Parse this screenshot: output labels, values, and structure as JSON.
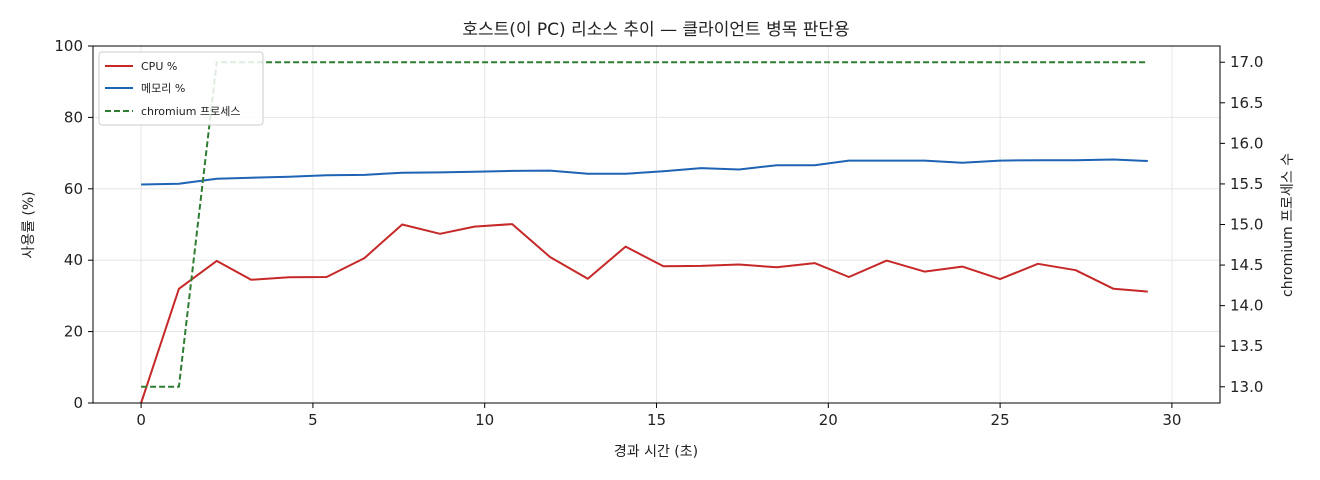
{
  "chart_data": {
    "type": "line",
    "title": "호스트(이 PC) 리소스 추이 — 클라이언트 병목 판단용",
    "xlabel": "경과 시간 (초)",
    "ylabel": "사용률 (%)",
    "y2label": "chromium 프로세스 수",
    "xlim": [
      -1.4,
      31.4
    ],
    "ylim": [
      0,
      100
    ],
    "y2lim": [
      12.8,
      17.2
    ],
    "xticks": [
      0,
      5,
      10,
      15,
      20,
      25,
      30
    ],
    "yticks": [
      0,
      20,
      40,
      60,
      80,
      100
    ],
    "y2ticks": [
      13.0,
      13.5,
      14.0,
      14.5,
      15.0,
      15.5,
      16.0,
      16.5,
      17.0
    ],
    "grid": true,
    "legend_placement": "top-left",
    "x": [
      0,
      1.1,
      2.2,
      3.2,
      4.3,
      5.4,
      6.5,
      7.6,
      8.7,
      9.7,
      10.8,
      11.9,
      13.0,
      14.1,
      15.2,
      16.3,
      17.4,
      18.5,
      19.6,
      20.6,
      21.7,
      22.8,
      23.9,
      25.0,
      26.1,
      27.2,
      28.3,
      29.3
    ],
    "series": [
      {
        "name": "CPU %",
        "axis": "left",
        "color": "#c62828",
        "style": "solid",
        "values": [
          0,
          32,
          39.8,
          34.5,
          35.2,
          35.3,
          40.6,
          50.0,
          47.4,
          49.4,
          50.1,
          40.9,
          34.8,
          43.8,
          38.3,
          38.4,
          38.8,
          38.0,
          39.2,
          35.3,
          39.9,
          36.8,
          38.2,
          34.7,
          39.0,
          37.2,
          32.0,
          31.2
        ]
      },
      {
        "name": "메모리 %",
        "axis": "left",
        "color": "#1e63b4",
        "style": "solid",
        "values": [
          61.2,
          61.4,
          62.8,
          63.1,
          63.4,
          63.8,
          63.9,
          64.5,
          64.6,
          64.8,
          65.0,
          65.1,
          64.2,
          64.2,
          64.9,
          65.8,
          65.4,
          66.6,
          66.6,
          67.9,
          67.9,
          67.9,
          67.3,
          67.9,
          68.0,
          68.0,
          68.2,
          67.8
        ]
      },
      {
        "name": "chromium 프로세스",
        "axis": "right",
        "color": "#2e7d32",
        "style": "dashed",
        "values": [
          13,
          13,
          17,
          17,
          17,
          17,
          17,
          17,
          17,
          17,
          17,
          17,
          17,
          17,
          17,
          17,
          17,
          17,
          17,
          17,
          17,
          17,
          17,
          17,
          17,
          17,
          17,
          17
        ]
      }
    ]
  }
}
